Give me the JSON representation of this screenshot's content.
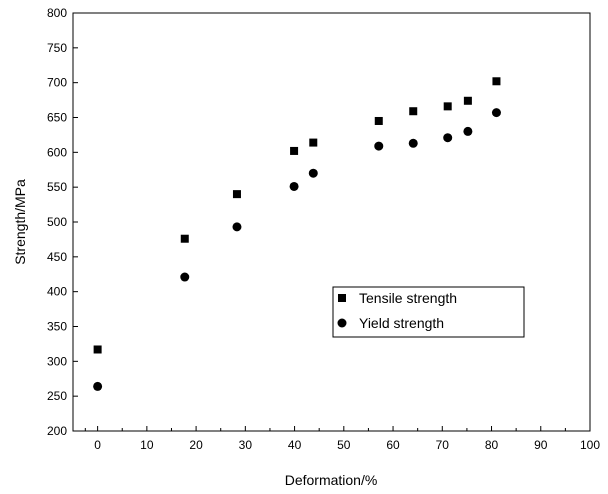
{
  "chart_data": {
    "type": "scatter",
    "xlabel": "Deformation/%",
    "ylabel": "Strength/MPa",
    "xlim": [
      -5,
      100
    ],
    "ylim": [
      200,
      800
    ],
    "x_ticks": [
      0,
      10,
      20,
      30,
      40,
      50,
      60,
      70,
      80,
      90,
      100
    ],
    "y_ticks": [
      200,
      250,
      300,
      350,
      400,
      450,
      500,
      550,
      600,
      650,
      700,
      750,
      800
    ],
    "grid": false,
    "legend_position": "middle-right",
    "series": [
      {
        "name": "Tensile strength",
        "marker": "square",
        "color": "#000000",
        "points": [
          {
            "x": 0,
            "y": 317
          },
          {
            "x": 17.7,
            "y": 476
          },
          {
            "x": 28.3,
            "y": 540
          },
          {
            "x": 39.9,
            "y": 602
          },
          {
            "x": 43.8,
            "y": 614
          },
          {
            "x": 57.1,
            "y": 645
          },
          {
            "x": 64.1,
            "y": 659
          },
          {
            "x": 71.1,
            "y": 666
          },
          {
            "x": 75.2,
            "y": 674
          },
          {
            "x": 81.0,
            "y": 702
          }
        ]
      },
      {
        "name": "Yield strength",
        "marker": "circle",
        "color": "#000000",
        "points": [
          {
            "x": 0,
            "y": 264
          },
          {
            "x": 17.7,
            "y": 421
          },
          {
            "x": 28.3,
            "y": 493
          },
          {
            "x": 39.9,
            "y": 551
          },
          {
            "x": 43.8,
            "y": 570
          },
          {
            "x": 57.1,
            "y": 609
          },
          {
            "x": 64.1,
            "y": 613
          },
          {
            "x": 71.1,
            "y": 621
          },
          {
            "x": 75.2,
            "y": 630
          },
          {
            "x": 81.0,
            "y": 657
          }
        ]
      }
    ]
  }
}
